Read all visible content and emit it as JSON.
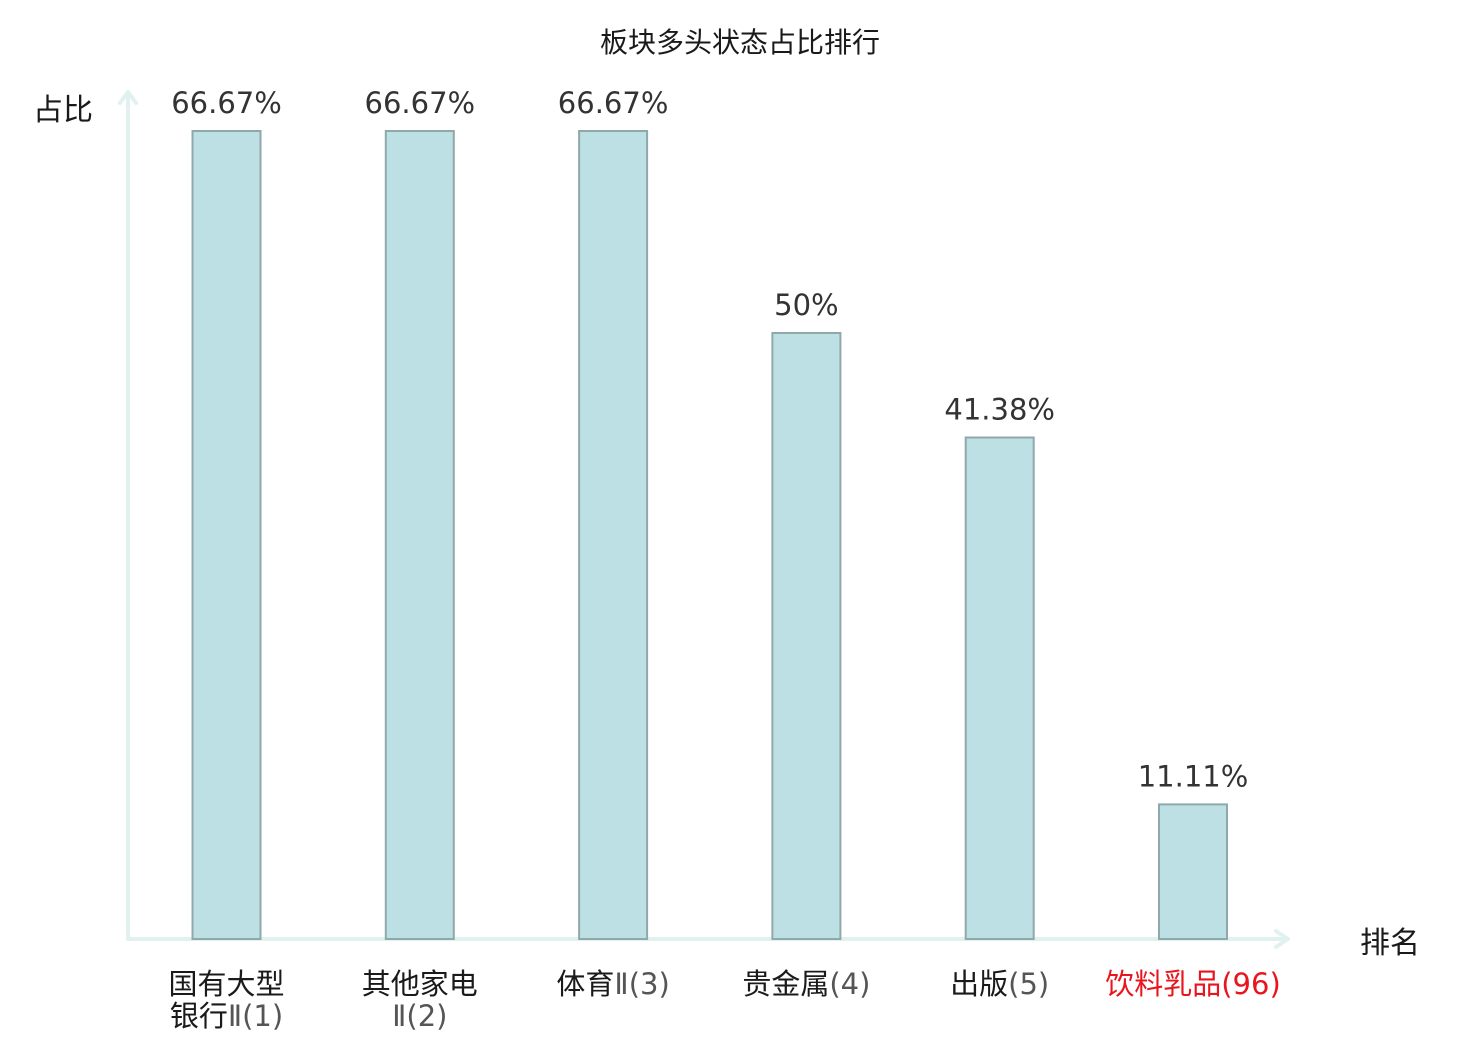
{
  "chart_data": {
    "type": "bar",
    "title": "板块多头状态占比排行",
    "ylabel": "占比",
    "xlabel": "排名",
    "ylim": [
      0,
      66.67
    ],
    "grid": false,
    "legend": "none",
    "categories": [
      {
        "lines": [
          {
            "name": "国有大型",
            "rank": ""
          },
          {
            "name": "银行",
            "rank": "Ⅱ(1)"
          }
        ],
        "highlight": false
      },
      {
        "lines": [
          {
            "name": "其他家电",
            "rank": ""
          },
          {
            "name": "",
            "rank": "Ⅱ(2)"
          }
        ],
        "highlight": false
      },
      {
        "lines": [
          {
            "name": "体育",
            "rank": "Ⅱ(3)"
          }
        ],
        "highlight": false
      },
      {
        "lines": [
          {
            "name": "贵金属",
            "rank": "(4)"
          }
        ],
        "highlight": false
      },
      {
        "lines": [
          {
            "name": "出版",
            "rank": "(5)"
          }
        ],
        "highlight": false
      },
      {
        "lines": [
          {
            "name": "饮料乳品",
            "rank": "(96)"
          }
        ],
        "highlight": true
      }
    ],
    "values": [
      66.67,
      66.67,
      66.67,
      50,
      41.38,
      11.11
    ],
    "value_labels": [
      "66.67%",
      "66.67%",
      "66.67%",
      "50%",
      "41.38%",
      "11.11%"
    ],
    "colors": {
      "bar_fill": "#bce0e3",
      "bar_stroke": "#8fa9ab",
      "axis": "#e0f1ef",
      "highlight": "#e8141e"
    }
  }
}
